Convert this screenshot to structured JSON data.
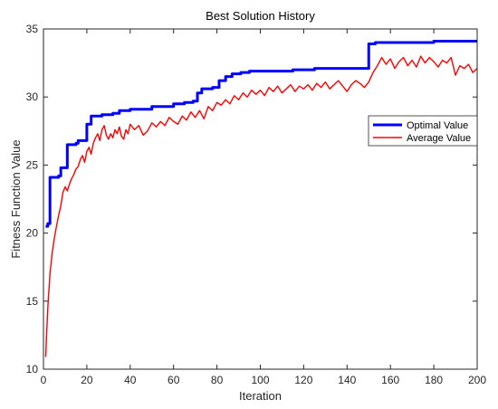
{
  "chart_data": {
    "type": "line",
    "title": "Best Solution History",
    "xlabel": "Iteration",
    "ylabel": "Fitness Function Value",
    "xlim": [
      0,
      200
    ],
    "ylim": [
      10,
      35
    ],
    "xticks": [
      0,
      20,
      40,
      60,
      80,
      100,
      120,
      140,
      160,
      180,
      200
    ],
    "yticks": [
      10,
      15,
      20,
      25,
      30,
      35
    ],
    "grid": false,
    "legend_position": "right",
    "series": [
      {
        "name": "Optimal Value",
        "color": "#0000ff",
        "step": true,
        "points": [
          [
            1,
            20.5
          ],
          [
            2,
            20.7
          ],
          [
            3,
            24.1
          ],
          [
            6,
            24.1
          ],
          [
            7,
            24.2
          ],
          [
            8,
            24.8
          ],
          [
            10,
            24.8
          ],
          [
            11,
            26.5
          ],
          [
            14,
            26.5
          ],
          [
            15,
            26.6
          ],
          [
            16,
            26.8
          ],
          [
            19,
            26.8
          ],
          [
            20,
            28.0
          ],
          [
            21,
            28.0
          ],
          [
            22,
            28.6
          ],
          [
            26,
            28.6
          ],
          [
            27,
            28.7
          ],
          [
            32,
            28.8
          ],
          [
            35,
            29.0
          ],
          [
            40,
            29.1
          ],
          [
            50,
            29.3
          ],
          [
            60,
            29.5
          ],
          [
            65,
            29.6
          ],
          [
            69,
            29.7
          ],
          [
            71,
            30.3
          ],
          [
            73,
            30.6
          ],
          [
            78,
            30.7
          ],
          [
            81,
            31.2
          ],
          [
            84,
            31.5
          ],
          [
            87,
            31.7
          ],
          [
            91,
            31.8
          ],
          [
            95,
            31.9
          ],
          [
            110,
            31.9
          ],
          [
            115,
            32.0
          ],
          [
            120,
            32.0
          ],
          [
            125,
            32.1
          ],
          [
            149,
            32.1
          ],
          [
            150,
            33.9
          ],
          [
            152,
            33.9
          ],
          [
            153,
            34.0
          ],
          [
            170,
            34.0
          ],
          [
            180,
            34.1
          ],
          [
            200,
            34.1
          ]
        ]
      },
      {
        "name": "Average Value",
        "color": "#ff0000",
        "step": false,
        "points": [
          [
            1,
            10.9
          ],
          [
            2,
            14.5
          ],
          [
            3,
            17.0
          ],
          [
            4,
            18.5
          ],
          [
            5,
            19.6
          ],
          [
            6,
            20.5
          ],
          [
            7,
            21.3
          ],
          [
            8,
            22.0
          ],
          [
            9,
            23.0
          ],
          [
            10,
            23.4
          ],
          [
            11,
            23.1
          ],
          [
            12,
            23.6
          ],
          [
            13,
            24.0
          ],
          [
            14,
            24.3
          ],
          [
            15,
            24.7
          ],
          [
            16,
            24.9
          ],
          [
            17,
            25.4
          ],
          [
            18,
            25.7
          ],
          [
            19,
            25.2
          ],
          [
            20,
            26.0
          ],
          [
            21,
            26.3
          ],
          [
            22,
            25.8
          ],
          [
            23,
            26.6
          ],
          [
            24,
            27.0
          ],
          [
            25,
            27.3
          ],
          [
            26,
            26.8
          ],
          [
            27,
            27.6
          ],
          [
            28,
            27.9
          ],
          [
            29,
            27.2
          ],
          [
            30,
            26.9
          ],
          [
            31,
            27.3
          ],
          [
            32,
            27.0
          ],
          [
            33,
            27.6
          ],
          [
            34,
            27.3
          ],
          [
            35,
            27.8
          ],
          [
            36,
            27.1
          ],
          [
            37,
            26.9
          ],
          [
            38,
            27.6
          ],
          [
            39,
            27.3
          ],
          [
            40,
            28.0
          ],
          [
            42,
            27.6
          ],
          [
            44,
            27.9
          ],
          [
            46,
            27.2
          ],
          [
            48,
            27.5
          ],
          [
            50,
            28.1
          ],
          [
            52,
            27.8
          ],
          [
            54,
            28.2
          ],
          [
            56,
            27.9
          ],
          [
            58,
            28.5
          ],
          [
            60,
            28.2
          ],
          [
            62,
            28.0
          ],
          [
            64,
            28.6
          ],
          [
            66,
            28.3
          ],
          [
            68,
            28.9
          ],
          [
            70,
            28.5
          ],
          [
            72,
            29.0
          ],
          [
            74,
            28.4
          ],
          [
            76,
            29.3
          ],
          [
            78,
            29.0
          ],
          [
            80,
            29.6
          ],
          [
            82,
            29.4
          ],
          [
            84,
            29.8
          ],
          [
            86,
            29.5
          ],
          [
            88,
            30.1
          ],
          [
            90,
            29.8
          ],
          [
            92,
            30.3
          ],
          [
            94,
            30.0
          ],
          [
            96,
            30.5
          ],
          [
            98,
            30.2
          ],
          [
            100,
            30.5
          ],
          [
            102,
            30.1
          ],
          [
            104,
            30.7
          ],
          [
            106,
            30.4
          ],
          [
            108,
            30.8
          ],
          [
            110,
            30.3
          ],
          [
            112,
            30.6
          ],
          [
            114,
            30.9
          ],
          [
            116,
            30.4
          ],
          [
            118,
            30.8
          ],
          [
            120,
            30.6
          ],
          [
            122,
            30.9
          ],
          [
            124,
            30.5
          ],
          [
            126,
            31.0
          ],
          [
            128,
            30.7
          ],
          [
            130,
            31.1
          ],
          [
            132,
            30.6
          ],
          [
            134,
            30.9
          ],
          [
            136,
            31.2
          ],
          [
            138,
            30.8
          ],
          [
            140,
            30.4
          ],
          [
            142,
            30.9
          ],
          [
            144,
            31.2
          ],
          [
            146,
            31.0
          ],
          [
            148,
            30.7
          ],
          [
            150,
            31.1
          ],
          [
            152,
            31.8
          ],
          [
            154,
            32.3
          ],
          [
            156,
            32.9
          ],
          [
            158,
            32.4
          ],
          [
            160,
            32.8
          ],
          [
            162,
            32.1
          ],
          [
            164,
            32.6
          ],
          [
            166,
            32.9
          ],
          [
            168,
            32.3
          ],
          [
            170,
            32.7
          ],
          [
            172,
            32.2
          ],
          [
            174,
            33.0
          ],
          [
            176,
            32.5
          ],
          [
            178,
            32.9
          ],
          [
            180,
            32.6
          ],
          [
            182,
            32.2
          ],
          [
            184,
            32.7
          ],
          [
            186,
            32.5
          ],
          [
            188,
            32.9
          ],
          [
            190,
            31.6
          ],
          [
            192,
            32.3
          ],
          [
            194,
            32.1
          ],
          [
            196,
            32.4
          ],
          [
            198,
            31.8
          ],
          [
            200,
            32.1
          ]
        ]
      }
    ]
  }
}
